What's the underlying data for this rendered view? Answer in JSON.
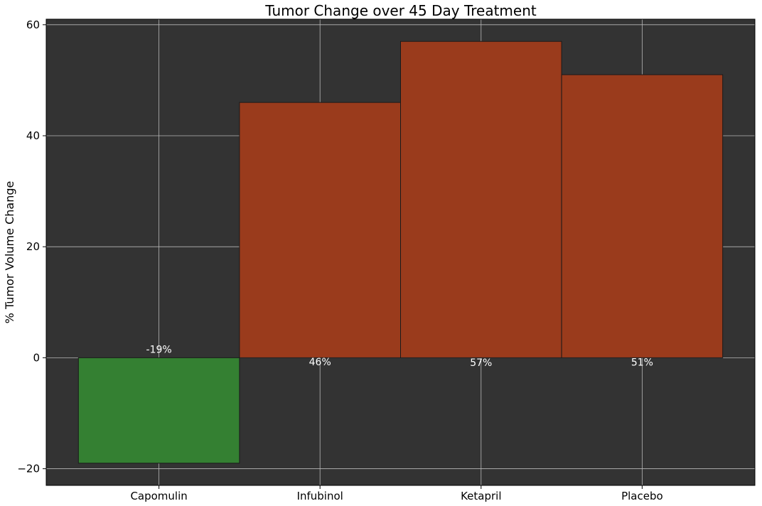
{
  "chart_data": {
    "type": "bar",
    "title": "Tumor Change over 45 Day Treatment",
    "xlabel": "",
    "ylabel": "% Tumor Volume Change",
    "categories": [
      "Capomulin",
      "Infubinol",
      "Ketapril",
      "Placebo"
    ],
    "values": [
      -19,
      46,
      57,
      51
    ],
    "data_labels": [
      "-19%",
      "46%",
      "57%",
      "51%"
    ],
    "ylim": [
      -23,
      61
    ],
    "yticks": [
      -20,
      0,
      20,
      40,
      60
    ],
    "ytick_labels": [
      "−20",
      "0",
      "20",
      "40",
      "60"
    ],
    "grid": true,
    "colors": {
      "negative": "#348032",
      "positive": "#9a3b1c",
      "plot_background": "#333333",
      "grid": "#b8b8b8"
    }
  }
}
